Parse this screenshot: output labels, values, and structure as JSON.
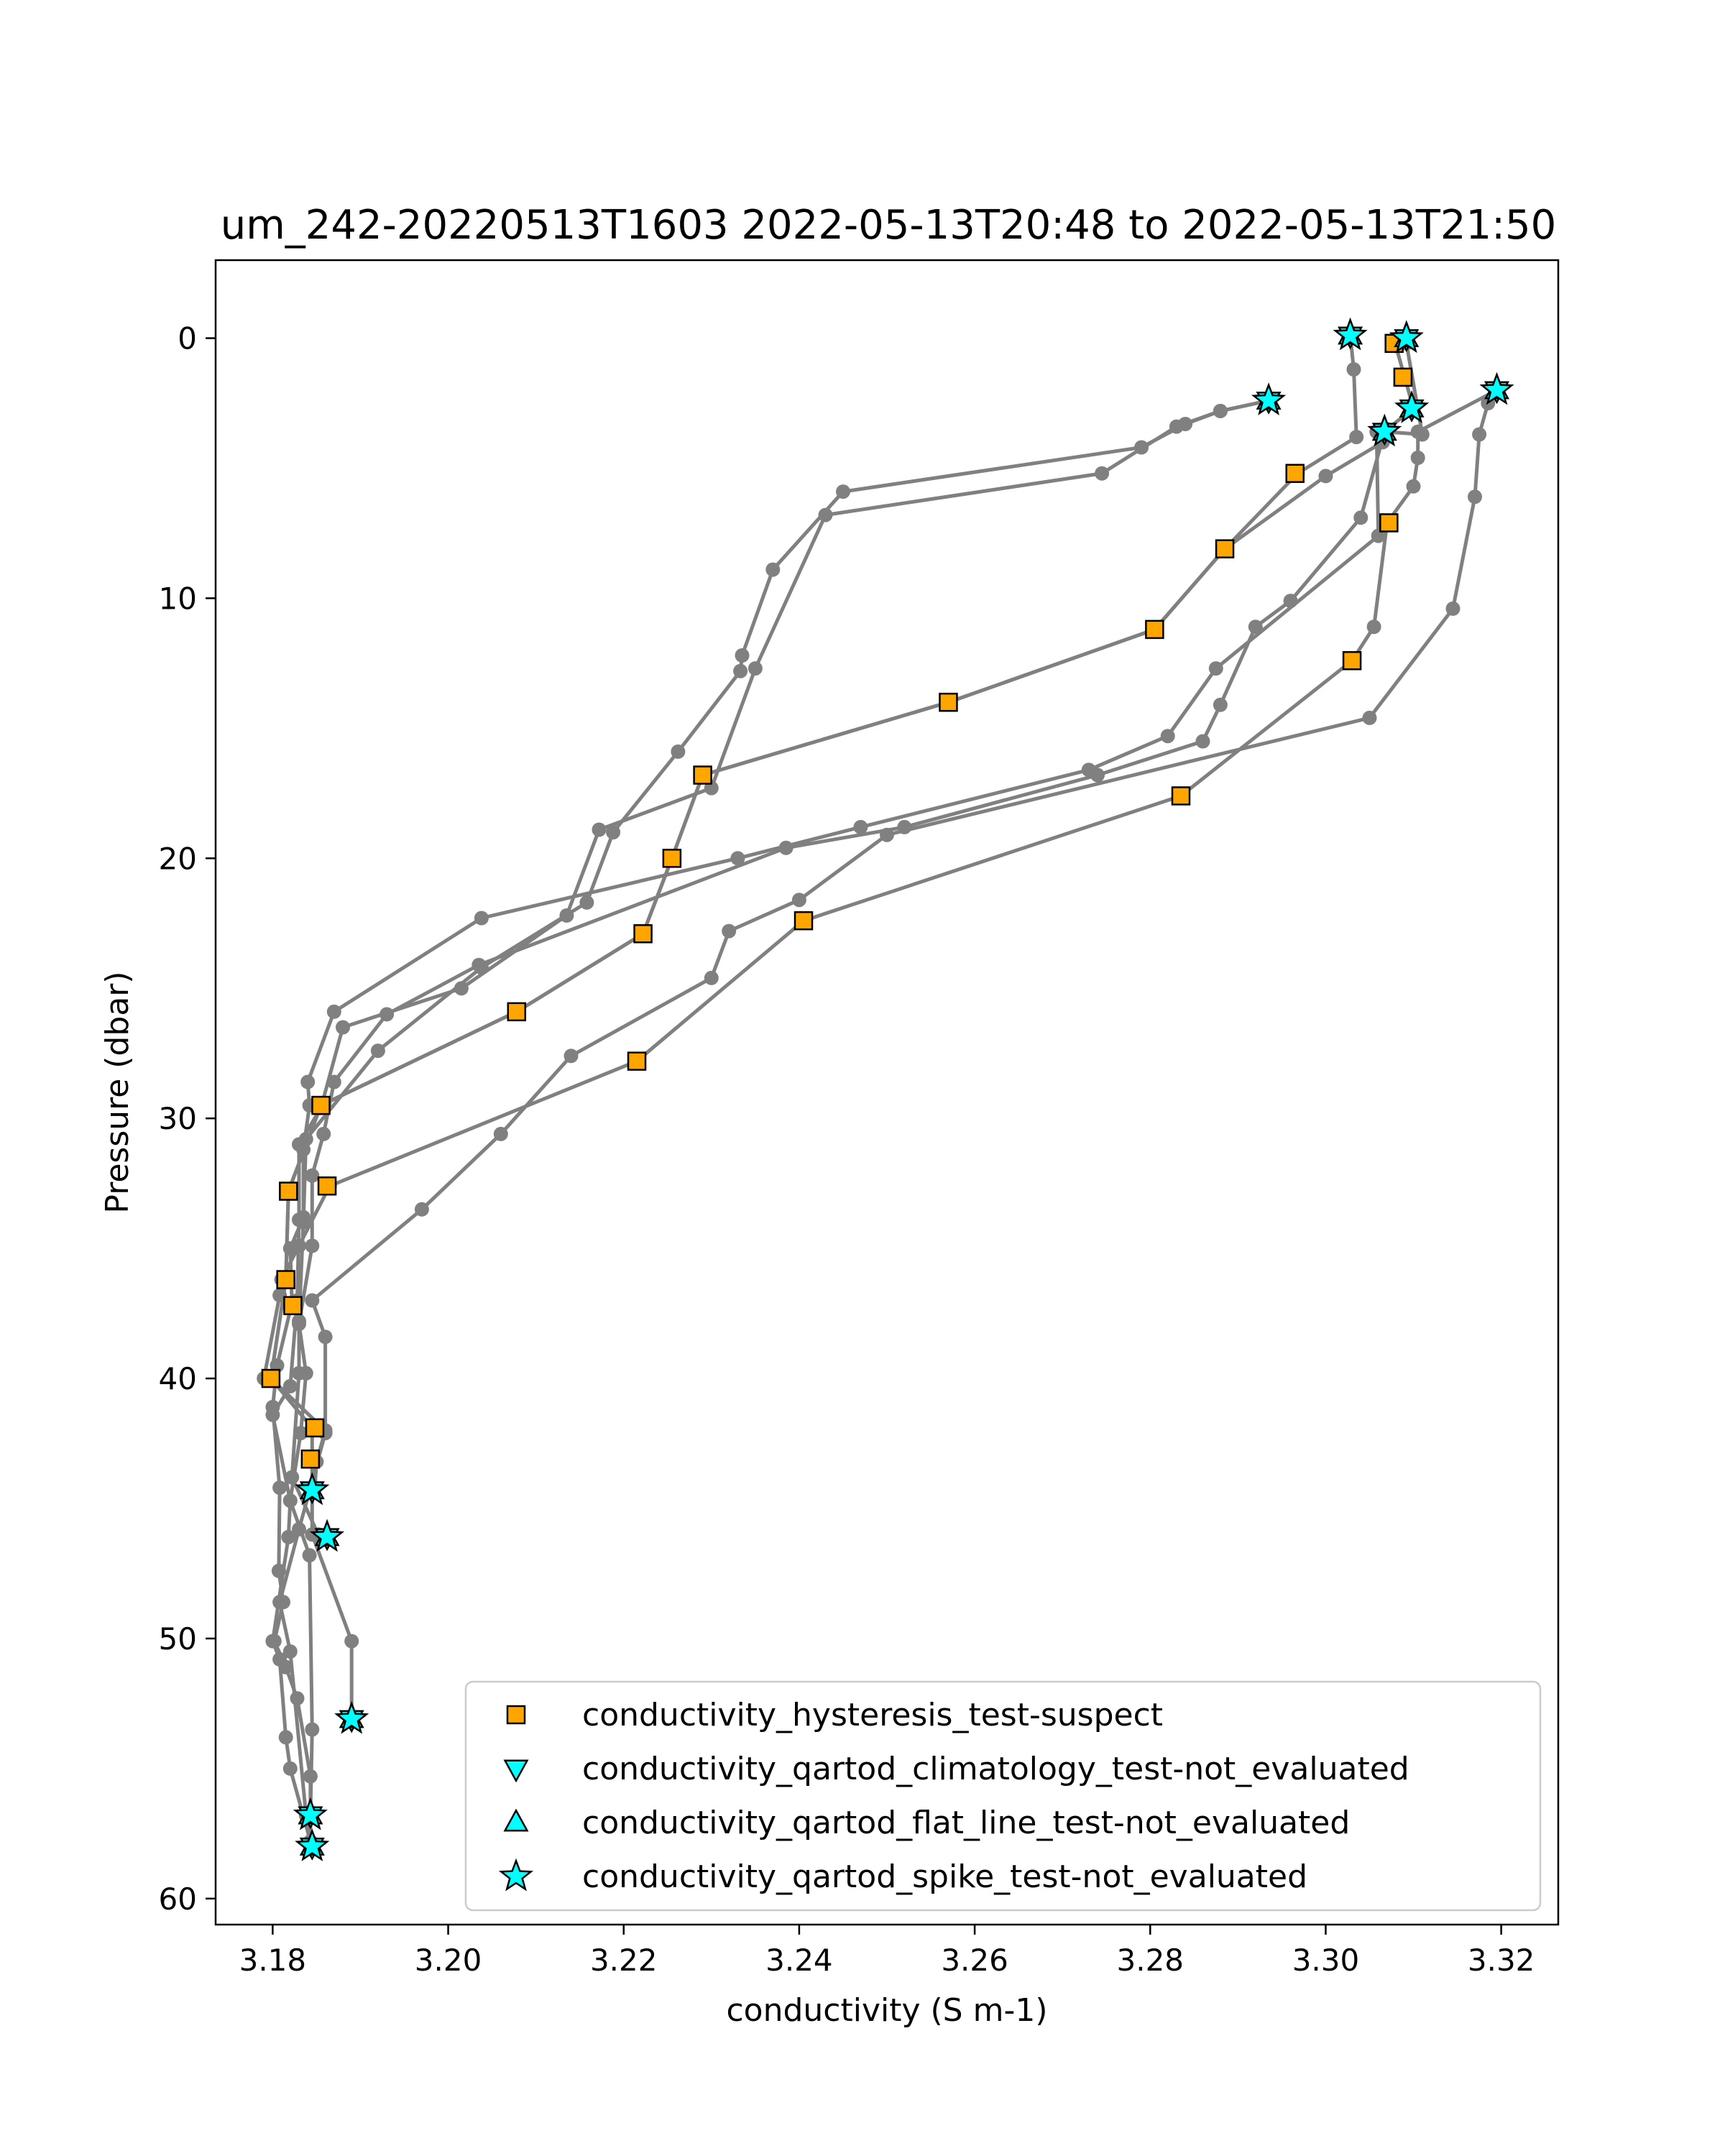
{
  "chart_data": {
    "type": "scatter",
    "title": "um_242-20220513T1603 2022-05-13T20:48 to 2022-05-13T21:50",
    "xlabel": "conductivity (S m-1)",
    "ylabel": "Pressure (dbar)",
    "xlim": [
      3.1735,
      3.3265
    ],
    "ylim": [
      61,
      -3
    ],
    "y_inverted": true,
    "grid": false,
    "legend_position": "lower-right",
    "xticks": [
      {
        "value": 3.18,
        "label": "3.18"
      },
      {
        "value": 3.2,
        "label": "3.20"
      },
      {
        "value": 3.22,
        "label": "3.22"
      },
      {
        "value": 3.24,
        "label": "3.24"
      },
      {
        "value": 3.26,
        "label": "3.26"
      },
      {
        "value": 3.28,
        "label": "3.28"
      },
      {
        "value": 3.3,
        "label": "3.30"
      },
      {
        "value": 3.32,
        "label": "3.32"
      }
    ],
    "yticks": [
      {
        "value": 0,
        "label": "0"
      },
      {
        "value": 10,
        "label": "10"
      },
      {
        "value": 20,
        "label": "20"
      },
      {
        "value": 30,
        "label": "30"
      },
      {
        "value": 40,
        "label": "40"
      },
      {
        "value": 50,
        "label": "50"
      },
      {
        "value": 60,
        "label": "60"
      }
    ],
    "profile_color": "#808080",
    "profiles": [
      [
        [
          3.3028,
          -0.1
        ],
        [
          3.3032,
          1.2
        ],
        [
          3.3035,
          3.8
        ],
        [
          3.2968,
          5.2
        ],
        [
          3.2885,
          8.1
        ],
        [
          3.2805,
          11.2
        ],
        [
          3.257,
          14.0
        ],
        [
          3.229,
          16.8
        ],
        [
          3.2255,
          20.0
        ],
        [
          3.2222,
          22.9
        ],
        [
          3.2078,
          25.9
        ],
        [
          3.1855,
          29.5
        ],
        [
          3.1818,
          32.8
        ],
        [
          3.1815,
          36.2
        ],
        [
          3.1798,
          40.0
        ],
        [
          3.1845,
          41.9
        ],
        [
          3.1845,
          44.3
        ],
        [
          3.1845,
          46.0
        ],
        [
          3.189,
          50.1
        ],
        [
          3.189,
          53.1
        ]
      ],
      [
        [
          3.3092,
          0.0
        ],
        [
          3.308,
          0.3
        ],
        [
          3.309,
          1.5
        ],
        [
          3.31,
          2.7
        ],
        [
          3.307,
          3.5
        ],
        [
          3.3065,
          4.0
        ],
        [
          3.3,
          5.3
        ],
        [
          3.2885,
          8.1
        ],
        [
          3.2805,
          11.2
        ],
        [
          3.257,
          14.0
        ],
        [
          3.229,
          16.8
        ],
        [
          3.2255,
          20.0
        ],
        [
          3.2222,
          22.9
        ],
        [
          3.2078,
          25.9
        ],
        [
          3.1855,
          29.5
        ],
        [
          3.1818,
          32.8
        ],
        [
          3.1815,
          36.2
        ],
        [
          3.1798,
          40.0
        ],
        [
          3.186,
          42.0
        ],
        [
          3.185,
          43.2
        ],
        [
          3.1848,
          44.2
        ]
      ],
      [
        [
          3.2935,
          2.4
        ],
        [
          3.288,
          2.8
        ],
        [
          3.284,
          3.3
        ],
        [
          3.279,
          4.2
        ],
        [
          3.245,
          5.9
        ],
        [
          3.237,
          8.9
        ],
        [
          3.2335,
          12.2
        ],
        [
          3.2333,
          12.8
        ],
        [
          3.2262,
          15.9
        ],
        [
          3.2188,
          19.0
        ],
        [
          3.2158,
          21.7
        ],
        [
          3.2038,
          24.2
        ],
        [
          3.192,
          27.4
        ],
        [
          3.1838,
          30.8
        ],
        [
          3.1835,
          34.0
        ],
        [
          3.183,
          37.8
        ],
        [
          3.183,
          39.8
        ],
        [
          3.1822,
          43.8
        ],
        [
          3.1852,
          46.0
        ]
      ],
      [
        [
          3.2935,
          2.4
        ],
        [
          3.288,
          2.8
        ],
        [
          3.283,
          3.4
        ],
        [
          3.2745,
          5.2
        ],
        [
          3.243,
          6.8
        ],
        [
          3.235,
          12.7
        ],
        [
          3.23,
          17.3
        ],
        [
          3.2172,
          18.9
        ],
        [
          3.2135,
          22.2
        ],
        [
          3.2015,
          25.0
        ],
        [
          3.188,
          26.5
        ],
        [
          3.1855,
          29.6
        ],
        [
          3.183,
          31.0
        ],
        [
          3.183,
          33.9
        ],
        [
          3.1828,
          37.0
        ],
        [
          3.182,
          40.3
        ],
        [
          3.18,
          41.4
        ],
        [
          3.182,
          44.7
        ],
        [
          3.1842,
          46.8
        ],
        [
          3.1845,
          53.5
        ],
        [
          3.1843,
          56.8
        ]
      ],
      [
        [
          3.3085,
          0.0
        ],
        [
          3.3092,
          0.2
        ],
        [
          3.311,
          3.7
        ],
        [
          3.3067,
          3.6
        ],
        [
          3.304,
          6.9
        ],
        [
          3.296,
          10.1
        ],
        [
          3.292,
          11.1
        ],
        [
          3.288,
          14.1
        ],
        [
          3.286,
          15.5
        ],
        [
          3.274,
          16.8
        ],
        [
          3.252,
          18.8
        ],
        [
          3.2385,
          19.6
        ],
        [
          3.2035,
          24.1
        ],
        [
          3.193,
          26.0
        ],
        [
          3.187,
          28.6
        ],
        [
          3.1858,
          30.6
        ],
        [
          3.1845,
          32.2
        ],
        [
          3.1845,
          34.9
        ],
        [
          3.183,
          37.9
        ],
        [
          3.1838,
          39.8
        ],
        [
          3.1832,
          42.1
        ],
        [
          3.182,
          44.7
        ],
        [
          3.1818,
          46.1
        ],
        [
          3.18,
          50.1
        ],
        [
          3.1808,
          50.8
        ],
        [
          3.1815,
          53.8
        ],
        [
          3.182,
          55.0
        ],
        [
          3.1843,
          57.8
        ],
        [
          3.1843,
          58.0
        ]
      ],
      [
        [
          3.3195,
          2.0
        ],
        [
          3.3185,
          2.5
        ],
        [
          3.3175,
          3.7
        ],
        [
          3.317,
          6.1
        ],
        [
          3.3145,
          10.4
        ],
        [
          3.305,
          14.6
        ],
        [
          3.25,
          19.1
        ],
        [
          3.24,
          21.6
        ],
        [
          3.232,
          22.8
        ],
        [
          3.23,
          24.6
        ],
        [
          3.214,
          27.6
        ],
        [
          3.206,
          30.6
        ],
        [
          3.197,
          33.5
        ],
        [
          3.1845,
          37.0
        ],
        [
          3.186,
          38.4
        ],
        [
          3.186,
          42.1
        ],
        [
          3.183,
          45.8
        ],
        [
          3.1808,
          48.6
        ],
        [
          3.182,
          50.5
        ],
        [
          3.1838,
          56.8
        ],
        [
          3.1845,
          57.9
        ]
      ],
      [
        [
          3.3195,
          2.0
        ],
        [
          3.3105,
          3.6
        ],
        [
          3.3105,
          4.6
        ],
        [
          3.31,
          5.7
        ],
        [
          3.307,
          7.1
        ],
        [
          3.3055,
          11.1
        ],
        [
          3.303,
          12.4
        ],
        [
          3.2835,
          17.6
        ],
        [
          3.2405,
          22.4
        ],
        [
          3.2215,
          27.8
        ],
        [
          3.1865,
          32.6
        ],
        [
          3.183,
          34.9
        ],
        [
          3.181,
          36.2
        ],
        [
          3.1808,
          36.8
        ],
        [
          3.179,
          40.0
        ]
      ],
      [
        [
          3.3058,
          3.6
        ],
        [
          3.306,
          7.6
        ],
        [
          3.2875,
          12.7
        ],
        [
          3.282,
          15.3
        ],
        [
          3.273,
          16.6
        ],
        [
          3.247,
          18.8
        ],
        [
          3.233,
          20.0
        ],
        [
          3.2038,
          22.3
        ],
        [
          3.187,
          25.9
        ],
        [
          3.184,
          28.6
        ],
        [
          3.1842,
          29.5
        ],
        [
          3.1835,
          31.2
        ],
        [
          3.1835,
          33.8
        ],
        [
          3.182,
          35.0
        ],
        [
          3.1822,
          37.1
        ],
        [
          3.1805,
          39.5
        ],
        [
          3.18,
          41.1
        ],
        [
          3.1808,
          44.2
        ],
        [
          3.1807,
          47.4
        ],
        [
          3.1812,
          48.6
        ],
        [
          3.1802,
          50.1
        ],
        [
          3.1815,
          51.1
        ],
        [
          3.1828,
          52.3
        ],
        [
          3.1843,
          55.3
        ],
        [
          3.1843,
          57.8
        ]
      ]
    ],
    "series": [
      {
        "name": "conductivity_hysteresis_test-suspect",
        "marker": "square",
        "color": "#ffa500",
        "points": [
          [
            3.3078,
            0.2
          ],
          [
            3.3088,
            1.5
          ],
          [
            3.2965,
            5.2
          ],
          [
            3.3072,
            7.1
          ],
          [
            3.2885,
            8.1
          ],
          [
            3.2805,
            11.2
          ],
          [
            3.303,
            12.4
          ],
          [
            3.257,
            14.0
          ],
          [
            3.229,
            16.8
          ],
          [
            3.2835,
            17.6
          ],
          [
            3.2255,
            20.0
          ],
          [
            3.2405,
            22.4
          ],
          [
            3.2222,
            22.9
          ],
          [
            3.2078,
            25.9
          ],
          [
            3.2215,
            27.8
          ],
          [
            3.1855,
            29.5
          ],
          [
            3.1862,
            32.6
          ],
          [
            3.1818,
            32.8
          ],
          [
            3.1815,
            36.2
          ],
          [
            3.1823,
            37.2
          ],
          [
            3.1798,
            40.0
          ],
          [
            3.1848,
            41.9
          ],
          [
            3.1843,
            43.1
          ]
        ]
      },
      {
        "name": "conductivity_qartod_climatology_test-not_evaluated",
        "marker": "triangle-down",
        "color": "#00ffff",
        "points": [
          [
            3.3028,
            -0.1
          ],
          [
            3.3092,
            0.0
          ],
          [
            3.2935,
            2.4
          ],
          [
            3.3195,
            2.0
          ],
          [
            3.3098,
            2.7
          ],
          [
            3.3067,
            3.6
          ],
          [
            3.1845,
            44.3
          ],
          [
            3.1862,
            46.1
          ],
          [
            3.189,
            53.1
          ],
          [
            3.1843,
            56.8
          ],
          [
            3.1845,
            58.0
          ]
        ]
      },
      {
        "name": "conductivity_qartod_flat_line_test-not_evaluated",
        "marker": "triangle-up",
        "color": "#00ffff",
        "points": [
          [
            3.3028,
            -0.1
          ],
          [
            3.3092,
            0.0
          ],
          [
            3.2935,
            2.4
          ],
          [
            3.3195,
            2.0
          ],
          [
            3.3098,
            2.7
          ],
          [
            3.3067,
            3.6
          ],
          [
            3.1845,
            44.3
          ],
          [
            3.1862,
            46.1
          ],
          [
            3.189,
            53.1
          ],
          [
            3.1843,
            56.8
          ],
          [
            3.1845,
            58.0
          ]
        ]
      },
      {
        "name": "conductivity_qartod_spike_test-not_evaluated",
        "marker": "star",
        "color": "#00ffff",
        "points": [
          [
            3.3028,
            -0.1
          ],
          [
            3.3092,
            0.0
          ],
          [
            3.2935,
            2.4
          ],
          [
            3.3195,
            2.0
          ],
          [
            3.3098,
            2.7
          ],
          [
            3.3067,
            3.6
          ],
          [
            3.1845,
            44.3
          ],
          [
            3.1862,
            46.1
          ],
          [
            3.189,
            53.1
          ],
          [
            3.1843,
            56.8
          ],
          [
            3.1845,
            58.0
          ]
        ]
      }
    ]
  }
}
